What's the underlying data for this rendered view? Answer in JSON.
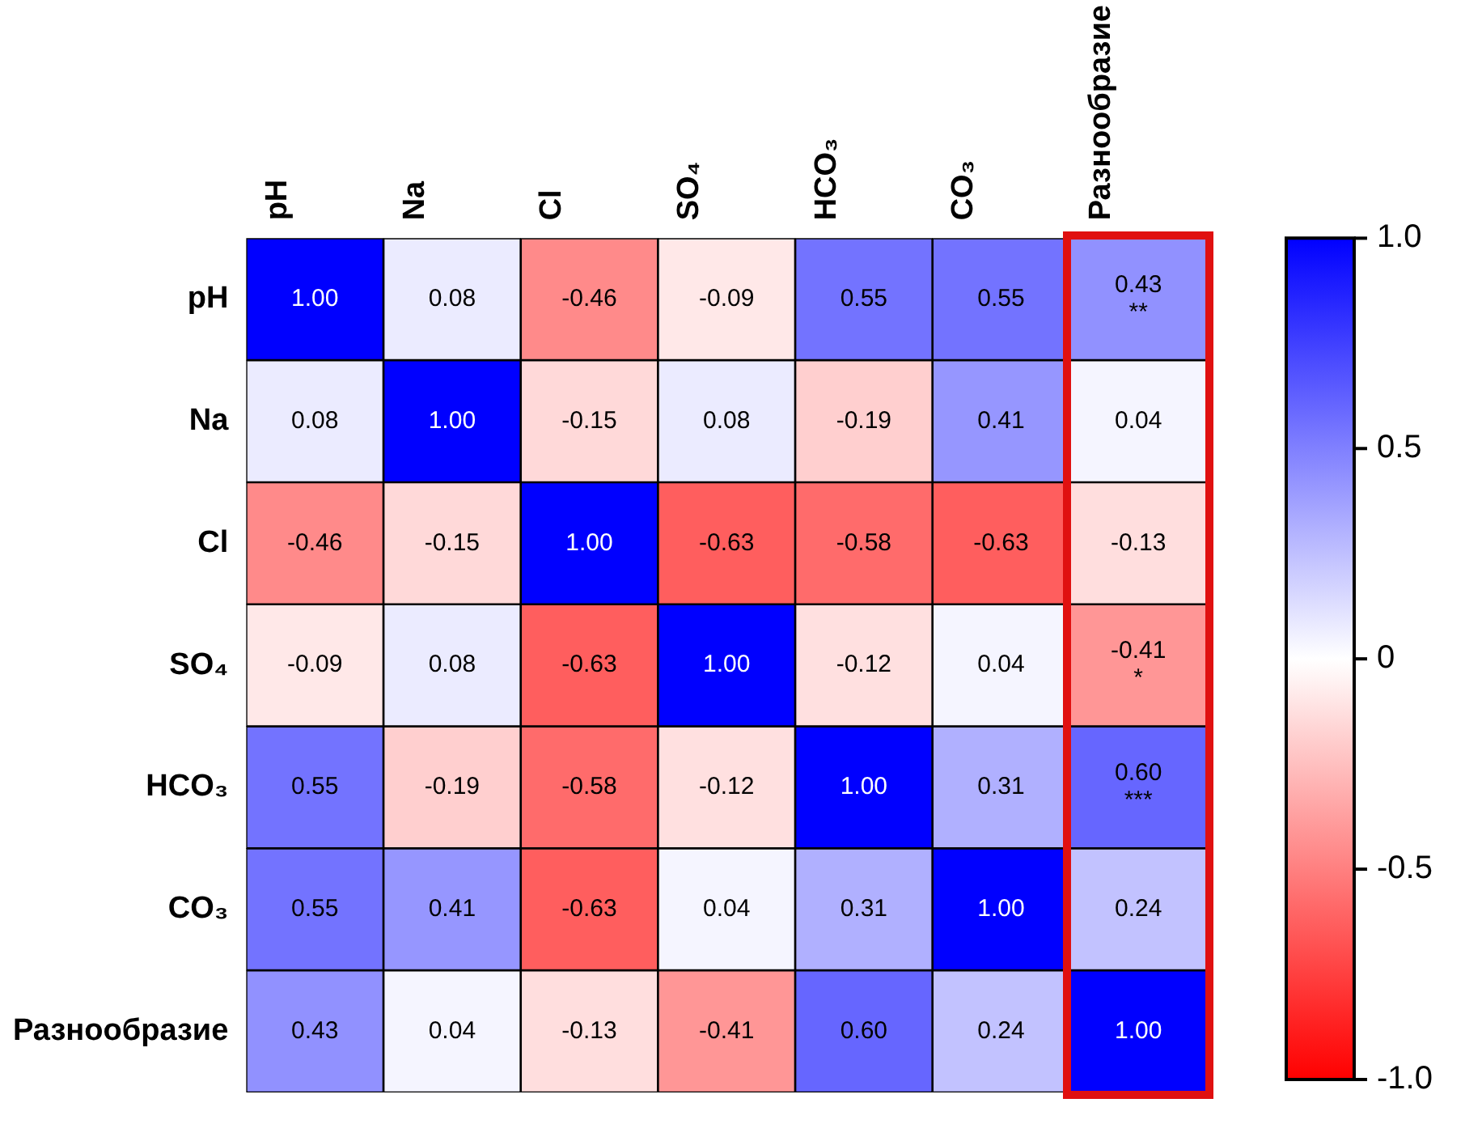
{
  "chart_data": {
    "type": "heatmap",
    "categories": [
      "pH",
      "Na",
      "Cl",
      "SO₄",
      "HCO₃",
      "CO₃",
      "Разнообразие"
    ],
    "y_categories": [
      "pH",
      "Na",
      "Cl",
      "SO₄",
      "HCO₃",
      "CO₃",
      "Разнообразие"
    ],
    "cells": [
      [
        1.0,
        0.08,
        -0.46,
        -0.09,
        0.55,
        0.55,
        0.43
      ],
      [
        0.08,
        1.0,
        -0.15,
        0.08,
        -0.19,
        0.41,
        0.04
      ],
      [
        -0.46,
        -0.15,
        1.0,
        -0.63,
        -0.58,
        -0.63,
        -0.13
      ],
      [
        -0.09,
        0.08,
        -0.63,
        1.0,
        -0.12,
        0.04,
        -0.41
      ],
      [
        0.55,
        -0.19,
        -0.58,
        -0.12,
        1.0,
        0.31,
        0.6
      ],
      [
        0.55,
        0.41,
        -0.63,
        0.04,
        0.31,
        1.0,
        0.24
      ],
      [
        0.43,
        0.04,
        -0.13,
        -0.41,
        0.6,
        0.24,
        1.0
      ]
    ],
    "cell_labels": [
      [
        "1.00",
        "0.08",
        "-0.46",
        "-0.09",
        "0.55",
        "0.55",
        "0.43\n**"
      ],
      [
        "0.08",
        "1.00",
        "-0.15",
        "0.08",
        "-0.19",
        "0.41",
        "0.04"
      ],
      [
        "-0.46",
        "-0.15",
        "1.00",
        "-0.63",
        "-0.58",
        "-0.63",
        "-0.13"
      ],
      [
        "-0.09",
        "0.08",
        "-0.63",
        "1.00",
        "-0.12",
        "0.04",
        "-0.41\n*"
      ],
      [
        "0.55",
        "-0.19",
        "-0.58",
        "-0.12",
        "1.00",
        "0.31",
        "0.60\n***"
      ],
      [
        "0.55",
        "0.41",
        "-0.63",
        "0.04",
        "0.31",
        "1.00",
        "0.24"
      ],
      [
        "0.43",
        "0.04",
        "-0.13",
        "-0.41",
        "0.60",
        "0.24",
        "1.00"
      ]
    ],
    "clim": [
      -1,
      1
    ],
    "cticks": [
      {
        "value": 1,
        "label": "1.0"
      },
      0.5,
      0,
      -0.5,
      {
        "value": -1,
        "label": "-1.0"
      }
    ]
  }
}
